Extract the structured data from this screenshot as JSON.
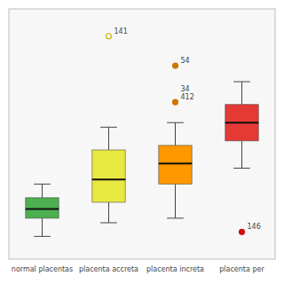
{
  "chart_data": {
    "type": "box",
    "categories": [
      "normal placentas",
      "placenta accreta",
      "placenta increta",
      "placenta per"
    ],
    "colors": [
      "#4caf50",
      "#e8e840",
      "#ff9800",
      "#e53935"
    ],
    "boxes": [
      {
        "q1": 28,
        "median": 32,
        "q3": 37,
        "whisker_low": 20,
        "whisker_high": 43
      },
      {
        "q1": 35,
        "median": 45,
        "q3": 58,
        "whisker_low": 26,
        "whisker_high": 68
      },
      {
        "q1": 43,
        "median": 52,
        "q3": 60,
        "whisker_low": 28,
        "whisker_high": 70
      },
      {
        "q1": 62,
        "median": 70,
        "q3": 78,
        "whisker_low": 50,
        "whisker_high": 88
      }
    ],
    "outliers": [
      {
        "category": "placenta accreta",
        "y": 108,
        "label": "141",
        "marker": "circle-open",
        "color": "#c8b800"
      },
      {
        "category": "placenta increta",
        "y": 95,
        "label": "54",
        "marker": "circle",
        "color": "#cc7700"
      },
      {
        "category": "placenta increta",
        "y": 79,
        "label": "34\n412",
        "marker": "circle",
        "color": "#cc7700"
      },
      {
        "category": "placenta per",
        "y": 22,
        "label": "146",
        "marker": "circle",
        "color": "#cc1111"
      }
    ],
    "ylim": [
      10,
      120
    ],
    "tick_labels": "x"
  }
}
